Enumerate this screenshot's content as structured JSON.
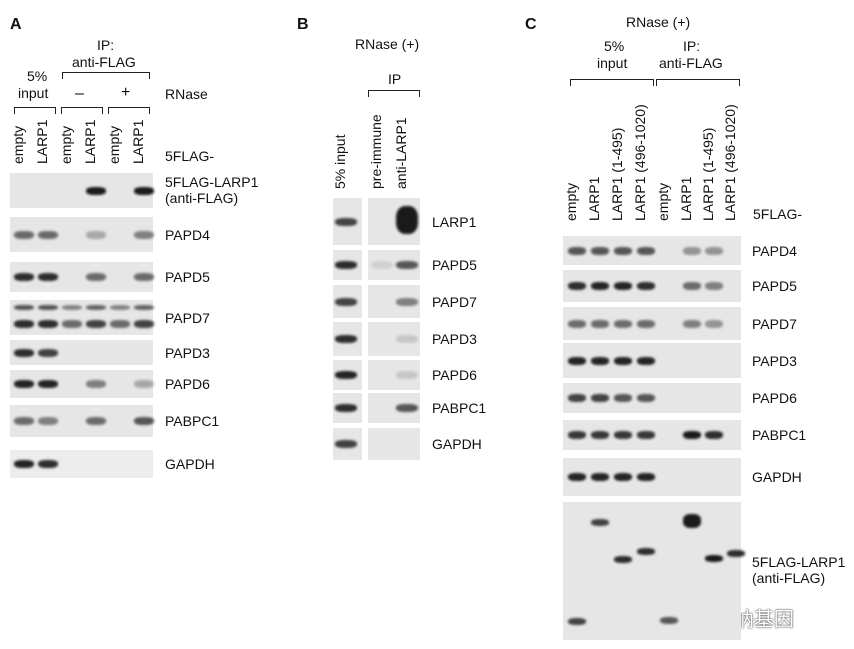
{
  "panels": {
    "A": {
      "letter": "A",
      "ip_label": "IP:",
      "ip_sub": "anti-FLAG",
      "input_label": "5%",
      "input_sub": "input",
      "rnase_minus": "–",
      "rnase_plus": "+",
      "rnase_label": "RNase",
      "lanes": [
        "empty",
        "LARP1",
        "empty",
        "LARP1",
        "empty",
        "LARP1"
      ],
      "lane_prefix": "5FLAG-",
      "rows": [
        {
          "label": "5FLAG-LARP1",
          "label2": "(anti-FLAG)",
          "bands": [
            0,
            0,
            0,
            1,
            0,
            1
          ]
        },
        {
          "label": "PAPD4",
          "bands": [
            0.6,
            0.6,
            0,
            0.3,
            0,
            0.5
          ]
        },
        {
          "label": "PAPD5",
          "bands": [
            0.9,
            0.9,
            0,
            0.6,
            0,
            0.6
          ]
        },
        {
          "label": "PAPD7",
          "bands": [
            0.9,
            0.9,
            0.6,
            0.8,
            0.6,
            0.8
          ]
        },
        {
          "label": "PAPD3",
          "bands": [
            0.9,
            0.8,
            0,
            0,
            0,
            0
          ]
        },
        {
          "label": "PAPD6",
          "bands": [
            0.95,
            0.95,
            0,
            0.5,
            0,
            0.3
          ]
        },
        {
          "label": "PABPC1",
          "bands": [
            0.6,
            0.5,
            0,
            0.6,
            0,
            0.7
          ]
        },
        {
          "label": "GAPDH",
          "bands": [
            0.95,
            0.9,
            null,
            null,
            null,
            null
          ]
        }
      ]
    },
    "B": {
      "letter": "B",
      "title": "RNase (+)",
      "ip_label": "IP",
      "lanes": [
        "5% input",
        "pre-immune",
        "anti-LARP1"
      ],
      "rows": [
        {
          "label": "LARP1",
          "bands": [
            0.8,
            0,
            1
          ]
        },
        {
          "label": "PAPD5",
          "bands": [
            0.9,
            0.1,
            0.7
          ]
        },
        {
          "label": "PAPD7",
          "bands": [
            0.8,
            0,
            0.5
          ]
        },
        {
          "label": "PAPD3",
          "bands": [
            0.9,
            0,
            0.15
          ]
        },
        {
          "label": "PAPD6",
          "bands": [
            0.95,
            0,
            0.15
          ]
        },
        {
          "label": "PABPC1",
          "bands": [
            0.9,
            0,
            0.7
          ]
        },
        {
          "label": "GAPDH",
          "bands": [
            0.8,
            0,
            0
          ]
        }
      ]
    },
    "C": {
      "letter": "C",
      "title": "RNase (+)",
      "input_label": "5%",
      "input_sub": "input",
      "ip_label": "IP:",
      "ip_sub": "anti-FLAG",
      "lanes": [
        "empty",
        "LARP1",
        "LARP1 (1-495)",
        "LARP1 (496-1020)",
        "empty",
        "LARP1",
        "LARP1 (1-495)",
        "LARP1 (496-1020)"
      ],
      "lane_prefix": "5FLAG-",
      "rows": [
        {
          "label": "PAPD4",
          "bands": [
            0.7,
            0.7,
            0.7,
            0.7,
            0,
            0.4,
            0.4,
            0
          ]
        },
        {
          "label": "PAPD5",
          "bands": [
            0.9,
            0.95,
            0.95,
            0.9,
            0,
            0.6,
            0.5,
            0
          ]
        },
        {
          "label": "PAPD7",
          "bands": [
            0.6,
            0.6,
            0.6,
            0.6,
            0,
            0.5,
            0.4,
            0
          ]
        },
        {
          "label": "PAPD3",
          "bands": [
            0.95,
            0.95,
            0.95,
            0.95,
            0,
            0,
            0,
            0
          ]
        },
        {
          "label": "PAPD6",
          "bands": [
            0.8,
            0.8,
            0.7,
            0.7,
            0,
            0,
            0,
            0
          ]
        },
        {
          "label": "PABPC1",
          "bands": [
            0.85,
            0.85,
            0.85,
            0.85,
            0,
            1,
            0.9,
            0
          ]
        },
        {
          "label": "GAPDH",
          "bands": [
            0.95,
            0.95,
            0.95,
            0.95,
            0,
            0,
            0,
            0
          ]
        },
        {
          "label": "5FLAG-LARP1",
          "label2": "(anti-FLAG)",
          "bands": [
            0.8,
            0.8,
            0.9,
            0.9,
            0.7,
            1,
            1,
            0.9
          ]
        }
      ]
    }
  },
  "watermark": "知乎 @贝纳基因"
}
